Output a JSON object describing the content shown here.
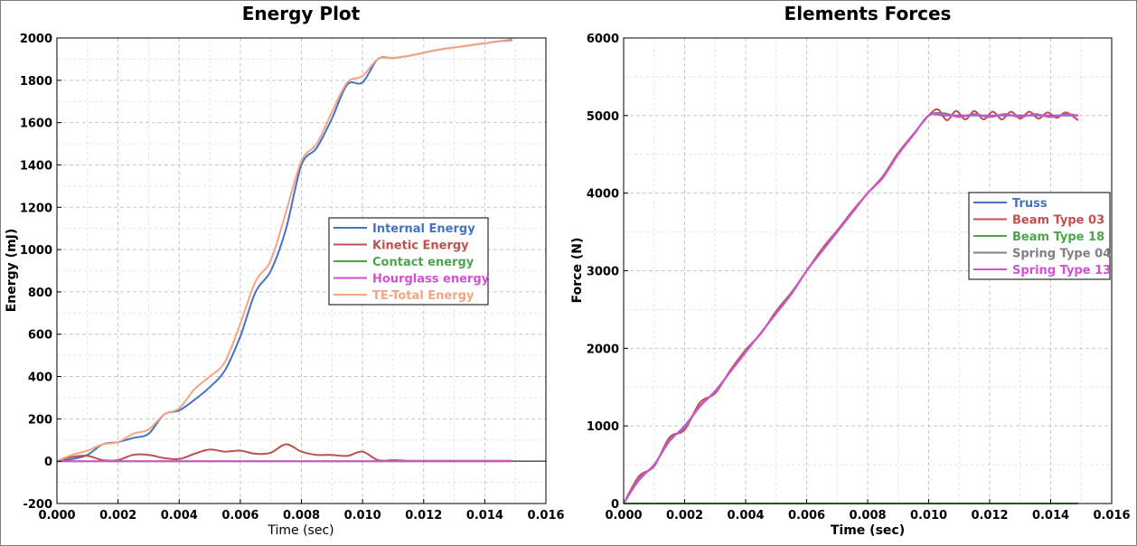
{
  "chart_data": [
    {
      "type": "line",
      "title": "Energy Plot",
      "xlabel": "Time (sec)",
      "ylabel": "Energy (mJ)",
      "xlim": [
        0,
        0.016
      ],
      "ylim": [
        -200,
        2000
      ],
      "xticks": [
        "0.000",
        "0.002",
        "0.004",
        "0.006",
        "0.008",
        "0.010",
        "0.012",
        "0.014",
        "0.016"
      ],
      "yticks": [
        "-200",
        "0",
        "200",
        "400",
        "600",
        "800",
        "1000",
        "1200",
        "1400",
        "1600",
        "1800",
        "2000"
      ],
      "grid": true,
      "legend_position": "center-right",
      "series": [
        {
          "name": "Internal Energy",
          "color": "#4472c4",
          "x": [
            0,
            0.0005,
            0.001,
            0.0015,
            0.002,
            0.0025,
            0.003,
            0.0035,
            0.004,
            0.0045,
            0.005,
            0.0055,
            0.006,
            0.0065,
            0.007,
            0.0075,
            0.008,
            0.0085,
            0.009,
            0.0095,
            0.01,
            0.0105,
            0.011,
            0.0115,
            0.012,
            0.0125,
            0.013,
            0.0135,
            0.014,
            0.0145,
            0.0149
          ],
          "y": [
            0,
            10,
            30,
            80,
            90,
            110,
            130,
            220,
            240,
            290,
            350,
            430,
            590,
            800,
            900,
            1100,
            1400,
            1480,
            1620,
            1780,
            1790,
            1900,
            1905,
            1915,
            1930,
            1945,
            1955,
            1965,
            1975,
            1985,
            1990
          ]
        },
        {
          "name": "Kinetic Energy",
          "color": "#c0504d",
          "x": [
            0,
            0.0005,
            0.001,
            0.0015,
            0.002,
            0.0025,
            0.003,
            0.0035,
            0.004,
            0.0045,
            0.005,
            0.0055,
            0.006,
            0.0065,
            0.007,
            0.0075,
            0.008,
            0.0085,
            0.009,
            0.0095,
            0.01,
            0.0105,
            0.011,
            0.0115,
            0.012,
            0.0125,
            0.013,
            0.0135,
            0.014,
            0.0145,
            0.0149
          ],
          "y": [
            0,
            20,
            25,
            5,
            5,
            30,
            30,
            15,
            10,
            35,
            55,
            45,
            50,
            35,
            40,
            80,
            45,
            30,
            30,
            25,
            45,
            5,
            5,
            2,
            2,
            2,
            2,
            2,
            2,
            2,
            2
          ]
        },
        {
          "name": "Contact energy",
          "color": "#4aa64a",
          "x": [
            0,
            0.0149
          ],
          "y": [
            0,
            0
          ]
        },
        {
          "name": "Hourglass energy",
          "color": "#d54fd5",
          "x": [
            0,
            0.0149
          ],
          "y": [
            0,
            0
          ]
        },
        {
          "name": "TE-Total Energy",
          "color": "#f4a582",
          "x": [
            0,
            0.0005,
            0.001,
            0.0015,
            0.002,
            0.0025,
            0.003,
            0.0035,
            0.004,
            0.0045,
            0.005,
            0.0055,
            0.006,
            0.0065,
            0.007,
            0.0075,
            0.008,
            0.0085,
            0.009,
            0.0095,
            0.01,
            0.0105,
            0.011,
            0.0115,
            0.012,
            0.0125,
            0.013,
            0.0135,
            0.014,
            0.0145,
            0.0149
          ],
          "y": [
            0,
            30,
            50,
            80,
            90,
            130,
            150,
            220,
            250,
            340,
            400,
            470,
            650,
            850,
            950,
            1180,
            1420,
            1500,
            1650,
            1790,
            1820,
            1900,
            1905,
            1915,
            1930,
            1945,
            1955,
            1965,
            1975,
            1985,
            1995
          ]
        }
      ],
      "annotations": []
    },
    {
      "type": "line",
      "title": "Elements Forces",
      "xlabel": "Time (sec)",
      "ylabel": "Force (N)",
      "xlim": [
        0,
        0.016
      ],
      "ylim": [
        0,
        6000
      ],
      "xticks": [
        "0.000",
        "0.002",
        "0.004",
        "0.006",
        "0.008",
        "0.010",
        "0.012",
        "0.014",
        "0.016"
      ],
      "yticks": [
        "0",
        "1000",
        "2000",
        "3000",
        "4000",
        "5000",
        "6000"
      ],
      "grid": true,
      "legend_position": "center-right",
      "series": [
        {
          "name": "Truss",
          "color": "#4472c4",
          "x": [
            0,
            0.0005,
            0.001,
            0.0015,
            0.002,
            0.0025,
            0.003,
            0.0035,
            0.004,
            0.0045,
            0.005,
            0.0055,
            0.006,
            0.0065,
            0.007,
            0.0075,
            0.008,
            0.0085,
            0.009,
            0.0095,
            0.01,
            0.0105,
            0.011,
            0.0115,
            0.012,
            0.0125,
            0.013,
            0.0135,
            0.014,
            0.0145,
            0.0149
          ],
          "y": [
            0,
            300,
            500,
            800,
            1000,
            1250,
            1450,
            1700,
            1950,
            2200,
            2450,
            2700,
            3000,
            3250,
            3500,
            3750,
            4000,
            4200,
            4500,
            4750,
            5000,
            5000,
            5000,
            5000,
            5000,
            5000,
            5000,
            5000,
            5000,
            5000,
            5000
          ]
        },
        {
          "name": "Beam Type 03",
          "color": "#c0504d",
          "x": [
            0,
            0.0005,
            0.001,
            0.0015,
            0.002,
            0.0025,
            0.003,
            0.0035,
            0.004,
            0.0045,
            0.005,
            0.0055,
            0.006,
            0.0065,
            0.007,
            0.0075,
            0.008,
            0.0085,
            0.009,
            0.0095,
            0.01,
            0.0103,
            0.0106,
            0.0109,
            0.0112,
            0.0115,
            0.0118,
            0.0121,
            0.0124,
            0.0127,
            0.013,
            0.0133,
            0.0136,
            0.0139,
            0.0142,
            0.0145,
            0.0149
          ],
          "y": [
            0,
            350,
            480,
            850,
            950,
            1300,
            1420,
            1720,
            1980,
            2190,
            2480,
            2720,
            3000,
            3280,
            3520,
            3770,
            4000,
            4220,
            4520,
            4760,
            5000,
            5080,
            4940,
            5060,
            4950,
            5060,
            4950,
            5050,
            4950,
            5050,
            4960,
            5050,
            4960,
            5040,
            4970,
            5040,
            4940
          ]
        },
        {
          "name": "Beam Type 18",
          "color": "#4aa64a",
          "x": [
            0,
            0.0149
          ],
          "y": [
            0,
            0
          ]
        },
        {
          "name": "Spring Type 04",
          "color": "#808080",
          "x": [
            0,
            0.0005,
            0.001,
            0.0015,
            0.002,
            0.0025,
            0.003,
            0.0035,
            0.004,
            0.0045,
            0.005,
            0.0055,
            0.006,
            0.0065,
            0.007,
            0.0075,
            0.008,
            0.0085,
            0.009,
            0.0095,
            0.01,
            0.0105,
            0.011,
            0.0115,
            0.012,
            0.0125,
            0.013,
            0.0135,
            0.014,
            0.0145,
            0.0149
          ],
          "y": [
            0,
            320,
            490,
            820,
            980,
            1260,
            1440,
            1700,
            1960,
            2200,
            2460,
            2710,
            3000,
            3260,
            3510,
            3760,
            4000,
            4210,
            4510,
            4750,
            5000,
            5030,
            4980,
            5020,
            4980,
            5020,
            4980,
            5020,
            4980,
            5020,
            5000
          ]
        },
        {
          "name": "Spring Type 13",
          "color": "#d54fd5",
          "x": [
            0,
            0.0005,
            0.001,
            0.0015,
            0.002,
            0.0025,
            0.003,
            0.0035,
            0.004,
            0.0045,
            0.005,
            0.0055,
            0.006,
            0.0065,
            0.007,
            0.0075,
            0.008,
            0.0085,
            0.009,
            0.0095,
            0.01,
            0.0105,
            0.011,
            0.0115,
            0.012,
            0.0125,
            0.013,
            0.0135,
            0.014,
            0.0145,
            0.0149
          ],
          "y": [
            0,
            310,
            500,
            810,
            990,
            1250,
            1450,
            1700,
            1950,
            2200,
            2450,
            2700,
            3000,
            3250,
            3500,
            3750,
            4000,
            4200,
            4500,
            4750,
            5000,
            5010,
            4990,
            5010,
            4990,
            5010,
            4990,
            5010,
            4990,
            5010,
            5000
          ]
        }
      ],
      "annotations": []
    }
  ]
}
